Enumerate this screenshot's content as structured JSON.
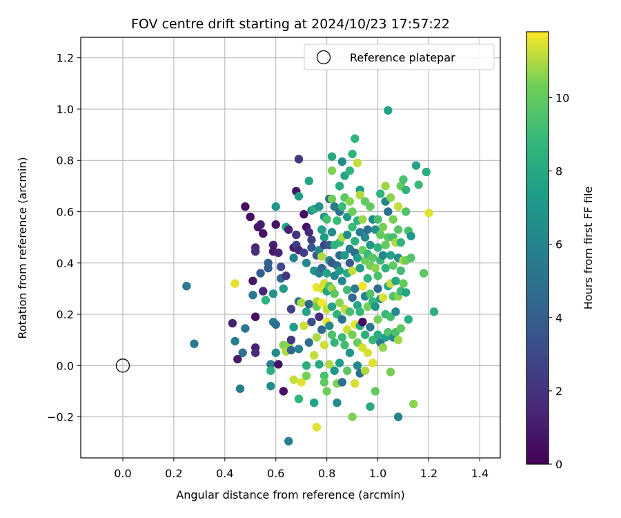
{
  "chart_data": {
    "type": "scatter",
    "title": "FOV centre drift starting at 2024/10/23 17:57:22",
    "xlabel": "Angular distance from reference (arcmin)",
    "ylabel": "Rotation from reference (arcmin)",
    "xlim": [
      -0.165,
      1.48
    ],
    "ylim": [
      -0.36,
      1.28
    ],
    "xticks": [
      0.0,
      0.2,
      0.4,
      0.6,
      0.8,
      1.0,
      1.2,
      1.4
    ],
    "xtick_labels": [
      "0.0",
      "0.2",
      "0.4",
      "0.6",
      "0.8",
      "1.0",
      "1.2",
      "1.4"
    ],
    "yticks": [
      -0.2,
      0.0,
      0.2,
      0.4,
      0.6,
      0.8,
      1.0,
      1.2
    ],
    "ytick_labels": [
      "−0.2",
      "0.0",
      "0.2",
      "0.4",
      "0.6",
      "0.8",
      "1.0",
      "1.2"
    ],
    "grid": true,
    "legend": {
      "placement": "top-right",
      "entries": [
        "Reference platepar"
      ]
    },
    "reference_point": {
      "x": 0.0,
      "y": 0.0,
      "label": "Reference platepar"
    },
    "colorbar": {
      "label": "Hours from first FF file",
      "min": 0,
      "max": 11.8,
      "ticks": [
        0,
        2,
        4,
        6,
        8,
        10
      ],
      "tick_labels": [
        "0",
        "2",
        "4",
        "6",
        "8",
        "10"
      ],
      "colormap": "viridis"
    },
    "points": [
      [
        0.25,
        0.31,
        5.3
      ],
      [
        0.28,
        0.085,
        5.5
      ],
      [
        0.44,
        0.32,
        11.5
      ],
      [
        0.46,
        -0.09,
        5.5
      ],
      [
        0.43,
        0.165,
        1.2
      ],
      [
        0.44,
        0.095,
        5.8
      ],
      [
        0.45,
        0.025,
        1.0
      ],
      [
        0.47,
        0.05,
        5.0
      ],
      [
        0.48,
        0.62,
        0.4
      ],
      [
        0.48,
        0.145,
        5.2
      ],
      [
        0.5,
        0.58,
        0.5
      ],
      [
        0.51,
        0.33,
        0.8
      ],
      [
        0.51,
        0.275,
        5.2
      ],
      [
        0.52,
        0.46,
        1.5
      ],
      [
        0.52,
        0.445,
        1.8
      ],
      [
        0.53,
        0.54,
        0.7
      ],
      [
        0.52,
        0.19,
        0.6
      ],
      [
        0.52,
        0.07,
        1.2
      ],
      [
        0.52,
        0.05,
        1.6
      ],
      [
        0.54,
        0.55,
        1.0
      ],
      [
        0.54,
        0.36,
        4.0
      ],
      [
        0.55,
        0.515,
        0.6
      ],
      [
        0.55,
        0.29,
        1.4
      ],
      [
        0.56,
        0.255,
        8.6
      ],
      [
        0.57,
        0.4,
        4.2
      ],
      [
        0.57,
        0.38,
        4.0
      ],
      [
        0.58,
        0.005,
        5.5
      ],
      [
        0.58,
        -0.02,
        8.4
      ],
      [
        0.58,
        -0.08,
        6.5
      ],
      [
        0.59,
        0.47,
        1.2
      ],
      [
        0.59,
        0.445,
        0.8
      ],
      [
        0.59,
        0.28,
        6.8
      ],
      [
        0.59,
        0.17,
        5.6
      ],
      [
        0.6,
        0.62,
        7.0
      ],
      [
        0.6,
        0.55,
        0.7
      ],
      [
        0.6,
        0.05,
        6.5
      ],
      [
        0.6,
        0.16,
        4.8
      ],
      [
        0.61,
        0.44,
        1.4
      ],
      [
        0.61,
        0.005,
        0.6
      ],
      [
        0.62,
        0.385,
        3.0
      ],
      [
        0.62,
        0.34,
        4.5
      ],
      [
        0.63,
        -0.1,
        0.6
      ],
      [
        0.63,
        0.08,
        10.5
      ],
      [
        0.63,
        0.3,
        7.2
      ],
      [
        0.64,
        0.54,
        7.6
      ],
      [
        0.64,
        0.35,
        2.2
      ],
      [
        0.64,
        0.055,
        11.0
      ],
      [
        0.65,
        0.53,
        1.2
      ],
      [
        0.65,
        -0.295,
        5.8
      ],
      [
        0.65,
        0.08,
        10.6
      ],
      [
        0.66,
        0.22,
        2.6
      ],
      [
        0.66,
        0.1,
        2.2
      ],
      [
        0.66,
        0.06,
        4.3
      ],
      [
        0.67,
        0.46,
        0.9
      ],
      [
        0.67,
        0.42,
        6.0
      ],
      [
        0.67,
        0.15,
        7.2
      ],
      [
        0.67,
        -0.055,
        11.2
      ],
      [
        0.68,
        0.68,
        0.8
      ],
      [
        0.68,
        0.51,
        2.0
      ],
      [
        0.68,
        0.47,
        2.5
      ],
      [
        0.69,
        0.805,
        2.2
      ],
      [
        0.69,
        0.66,
        7.3
      ],
      [
        0.69,
        0.45,
        1.4
      ],
      [
        0.69,
        0.25,
        4.8
      ],
      [
        0.69,
        0.065,
        6.0
      ],
      [
        0.69,
        -0.13,
        8.8
      ],
      [
        0.7,
        -0.065,
        11.5
      ],
      [
        0.7,
        0.245,
        11.0
      ],
      [
        0.71,
        0.44,
        2.5
      ],
      [
        0.71,
        0.59,
        0.5
      ],
      [
        0.71,
        0.155,
        11.3
      ],
      [
        0.72,
        0.54,
        0.6
      ],
      [
        0.72,
        0.4,
        6.2
      ],
      [
        0.72,
        0.21,
        7.6
      ],
      [
        0.72,
        0.0,
        8.3
      ],
      [
        0.72,
        -0.04,
        10.4
      ],
      [
        0.73,
        0.72,
        7.8
      ],
      [
        0.73,
        0.52,
        1.6
      ],
      [
        0.73,
        0.24,
        4.3
      ],
      [
        0.73,
        0.09,
        4.8
      ],
      [
        0.74,
        0.49,
        2.6
      ],
      [
        0.74,
        0.605,
        6.6
      ],
      [
        0.74,
        0.46,
        3.6
      ],
      [
        0.74,
        0.17,
        3.3
      ],
      [
        0.75,
        0.37,
        7.0
      ],
      [
        0.75,
        0.61,
        8.2
      ],
      [
        0.75,
        0.04,
        11.2
      ],
      [
        0.75,
        -0.145,
        7.6
      ],
      [
        0.76,
        0.43,
        3.8
      ],
      [
        0.76,
        0.305,
        11.6
      ],
      [
        0.76,
        0.25,
        11.0
      ],
      [
        0.76,
        0.23,
        10.2
      ],
      [
        0.76,
        0.11,
        11.0
      ],
      [
        0.76,
        -0.24,
        11.5
      ],
      [
        0.77,
        0.62,
        6.8
      ],
      [
        0.77,
        0.45,
        6.4
      ],
      [
        0.77,
        0.36,
        5.6
      ],
      [
        0.77,
        0.19,
        1.8
      ],
      [
        0.77,
        0.005,
        8.0
      ],
      [
        0.78,
        0.53,
        7.5
      ],
      [
        0.78,
        0.425,
        11.0
      ],
      [
        0.78,
        0.38,
        4.5
      ],
      [
        0.78,
        0.3,
        11.5
      ],
      [
        0.78,
        0.245,
        11.7
      ],
      [
        0.78,
        0.14,
        4.6
      ],
      [
        0.79,
        0.58,
        7.2
      ],
      [
        0.79,
        0.5,
        7.3
      ],
      [
        0.79,
        0.47,
        2.8
      ],
      [
        0.79,
        0.32,
        11.4
      ],
      [
        0.79,
        0.08,
        11.3
      ],
      [
        0.79,
        -0.04,
        9.4
      ],
      [
        0.79,
        -0.065,
        10.0
      ],
      [
        0.8,
        0.57,
        9.3
      ],
      [
        0.8,
        0.36,
        7.8
      ],
      [
        0.8,
        0.29,
        7.5
      ],
      [
        0.8,
        0.22,
        11.2
      ],
      [
        0.8,
        0.17,
        11.6
      ],
      [
        0.8,
        -0.1,
        10.3
      ],
      [
        0.81,
        0.65,
        4.2
      ],
      [
        0.81,
        0.47,
        3.7
      ],
      [
        0.81,
        0.41,
        6.3
      ],
      [
        0.81,
        0.31,
        9.5
      ],
      [
        0.81,
        0.155,
        6.2
      ],
      [
        0.81,
        0.005,
        11.0
      ],
      [
        0.82,
        0.815,
        8.0
      ],
      [
        0.82,
        0.76,
        10.5
      ],
      [
        0.82,
        0.65,
        10.3
      ],
      [
        0.82,
        0.52,
        6.5
      ],
      [
        0.82,
        0.4,
        3.6
      ],
      [
        0.82,
        0.3,
        10.8
      ],
      [
        0.82,
        0.23,
        7.6
      ],
      [
        0.82,
        0.12,
        9.5
      ],
      [
        0.83,
        0.62,
        5.4
      ],
      [
        0.83,
        0.47,
        8.6
      ],
      [
        0.83,
        0.35,
        6.4
      ],
      [
        0.83,
        0.28,
        9.9
      ],
      [
        0.83,
        0.09,
        8.8
      ],
      [
        0.83,
        -0.02,
        7.0
      ],
      [
        0.84,
        0.565,
        9.0
      ],
      [
        0.84,
        0.39,
        4.6
      ],
      [
        0.84,
        0.2,
        8.5
      ],
      [
        0.84,
        -0.07,
        10.5
      ],
      [
        0.84,
        -0.145,
        6.4
      ],
      [
        0.85,
        0.7,
        8.2
      ],
      [
        0.85,
        0.6,
        5.0
      ],
      [
        0.85,
        0.48,
        8.8
      ],
      [
        0.85,
        0.43,
        4.7
      ],
      [
        0.85,
        0.37,
        7.2
      ],
      [
        0.85,
        0.245,
        10.6
      ],
      [
        0.85,
        0.01,
        7.4
      ],
      [
        0.86,
        0.795,
        6.4
      ],
      [
        0.86,
        0.62,
        9.0
      ],
      [
        0.86,
        0.5,
        11.0
      ],
      [
        0.86,
        0.33,
        6.2
      ],
      [
        0.86,
        0.18,
        5.0
      ],
      [
        0.86,
        0.11,
        9.0
      ],
      [
        0.86,
        -0.065,
        4.8
      ],
      [
        0.87,
        0.74,
        7.8
      ],
      [
        0.87,
        0.655,
        9.8
      ],
      [
        0.87,
        0.43,
        7.0
      ],
      [
        0.87,
        0.22,
        11.2
      ],
      [
        0.87,
        0.08,
        9.2
      ],
      [
        0.88,
        0.58,
        7.0
      ],
      [
        0.88,
        0.51,
        6.6
      ],
      [
        0.88,
        0.36,
        8.0
      ],
      [
        0.88,
        0.295,
        9.2
      ],
      [
        0.88,
        0.14,
        11.3
      ],
      [
        0.88,
        -0.02,
        9.8
      ],
      [
        0.89,
        0.76,
        8.6
      ],
      [
        0.89,
        0.64,
        10.6
      ],
      [
        0.89,
        0.455,
        5.8
      ],
      [
        0.89,
        0.4,
        3.8
      ],
      [
        0.89,
        0.21,
        9.4
      ],
      [
        0.89,
        0.05,
        6.8
      ],
      [
        0.9,
        0.825,
        8.6
      ],
      [
        0.9,
        0.6,
        10.2
      ],
      [
        0.9,
        0.54,
        9.0
      ],
      [
        0.9,
        0.37,
        11.2
      ],
      [
        0.9,
        0.265,
        4.6
      ],
      [
        0.9,
        0.12,
        10.4
      ],
      [
        0.9,
        -0.2,
        10.5
      ],
      [
        0.91,
        0.885,
        8.6
      ],
      [
        0.91,
        0.485,
        8.4
      ],
      [
        0.91,
        0.44,
        4.6
      ],
      [
        0.91,
        0.3,
        5.4
      ],
      [
        0.91,
        0.16,
        11.6
      ],
      [
        0.91,
        -0.07,
        11.4
      ],
      [
        0.92,
        0.79,
        11.2
      ],
      [
        0.92,
        0.565,
        8.4
      ],
      [
        0.92,
        0.42,
        7.4
      ],
      [
        0.92,
        0.235,
        7.8
      ],
      [
        0.92,
        0.09,
        10.2
      ],
      [
        0.92,
        0.0,
        6.4
      ],
      [
        0.93,
        0.685,
        7.4
      ],
      [
        0.93,
        0.665,
        11.0
      ],
      [
        0.93,
        0.52,
        5.6
      ],
      [
        0.93,
        0.38,
        7.4
      ],
      [
        0.93,
        0.21,
        8.8
      ],
      [
        0.93,
        0.155,
        8.0
      ],
      [
        0.93,
        -0.03,
        4.8
      ],
      [
        0.94,
        0.57,
        10.8
      ],
      [
        0.94,
        0.45,
        10.2
      ],
      [
        0.94,
        0.31,
        11.7
      ],
      [
        0.94,
        0.17,
        0.4
      ],
      [
        0.94,
        0.07,
        11.4
      ],
      [
        0.95,
        0.64,
        10.0
      ],
      [
        0.95,
        0.5,
        6.2
      ],
      [
        0.95,
        0.41,
        10.3
      ],
      [
        0.95,
        0.27,
        6.0
      ],
      [
        0.95,
        0.12,
        8.4
      ],
      [
        0.95,
        -0.02,
        11.0
      ],
      [
        0.96,
        0.53,
        5.0
      ],
      [
        0.96,
        0.435,
        9.0
      ],
      [
        0.96,
        0.34,
        8.6
      ],
      [
        0.96,
        0.23,
        10.4
      ],
      [
        0.96,
        0.05,
        11.4
      ],
      [
        0.97,
        0.62,
        10.0
      ],
      [
        0.97,
        0.47,
        7.0
      ],
      [
        0.97,
        0.39,
        10.3
      ],
      [
        0.97,
        0.28,
        9.6
      ],
      [
        0.97,
        0.15,
        5.4
      ],
      [
        0.97,
        -0.16,
        8.0
      ],
      [
        0.98,
        0.57,
        6.2
      ],
      [
        0.98,
        0.42,
        9.8
      ],
      [
        0.98,
        0.25,
        8.6
      ],
      [
        0.98,
        0.1,
        9.0
      ],
      [
        0.98,
        0.01,
        11.5
      ],
      [
        0.99,
        0.53,
        6.8
      ],
      [
        0.99,
        0.38,
        10.6
      ],
      [
        0.99,
        0.23,
        7.0
      ],
      [
        0.99,
        -0.1,
        10.0
      ],
      [
        1.0,
        0.57,
        9.4
      ],
      [
        1.0,
        0.46,
        8.6
      ],
      [
        1.0,
        0.35,
        9.4
      ],
      [
        1.0,
        0.3,
        4.5
      ],
      [
        1.0,
        0.18,
        10.4
      ],
      [
        1.0,
        0.12,
        8.2
      ],
      [
        1.01,
        0.67,
        8.6
      ],
      [
        1.01,
        0.51,
        10.0
      ],
      [
        1.01,
        0.41,
        9.0
      ],
      [
        1.01,
        0.26,
        6.8
      ],
      [
        1.01,
        0.09,
        5.6
      ],
      [
        1.02,
        0.54,
        10.4
      ],
      [
        1.02,
        0.43,
        6.2
      ],
      [
        1.02,
        0.265,
        11.4
      ],
      [
        1.02,
        0.07,
        10.7
      ],
      [
        1.03,
        0.7,
        10.8
      ],
      [
        1.03,
        0.64,
        6.0
      ],
      [
        1.03,
        0.47,
        10.0
      ],
      [
        1.03,
        0.38,
        8.6
      ],
      [
        1.03,
        0.2,
        8.9
      ],
      [
        1.03,
        0.11,
        7.4
      ],
      [
        1.04,
        0.995,
        7.6
      ],
      [
        1.04,
        0.6,
        5.0
      ],
      [
        1.04,
        0.5,
        9.8
      ],
      [
        1.04,
        0.31,
        8.0
      ],
      [
        1.04,
        0.13,
        9.6
      ],
      [
        1.05,
        0.655,
        10.6
      ],
      [
        1.05,
        0.43,
        7.6
      ],
      [
        1.05,
        0.32,
        11.2
      ],
      [
        1.05,
        0.19,
        9.2
      ],
      [
        1.05,
        -0.025,
        10.4
      ],
      [
        1.06,
        0.57,
        10.4
      ],
      [
        1.06,
        0.5,
        9.2
      ],
      [
        1.06,
        0.39,
        10.0
      ],
      [
        1.06,
        0.27,
        9.6
      ],
      [
        1.06,
        0.11,
        6.6
      ],
      [
        1.07,
        0.48,
        11.0
      ],
      [
        1.07,
        0.33,
        7.8
      ],
      [
        1.07,
        0.21,
        6.2
      ],
      [
        1.07,
        0.13,
        9.4
      ],
      [
        1.08,
        0.62,
        11.2
      ],
      [
        1.08,
        0.53,
        9.8
      ],
      [
        1.08,
        0.42,
        6.6
      ],
      [
        1.08,
        0.27,
        10.6
      ],
      [
        1.08,
        0.1,
        10.8
      ],
      [
        1.08,
        -0.2,
        6.0
      ],
      [
        1.09,
        0.7,
        10.2
      ],
      [
        1.09,
        0.48,
        8.6
      ],
      [
        1.09,
        0.37,
        9.2
      ],
      [
        1.09,
        0.29,
        9.0
      ],
      [
        1.09,
        0.145,
        10.0
      ],
      [
        1.1,
        0.725,
        9.4
      ],
      [
        1.1,
        0.41,
        11.0
      ],
      [
        1.1,
        0.32,
        10.0
      ],
      [
        1.11,
        0.685,
        8.7
      ],
      [
        1.11,
        0.6,
        9.6
      ],
      [
        1.11,
        0.41,
        10.2
      ],
      [
        1.11,
        0.285,
        7.8
      ],
      [
        1.12,
        0.525,
        9.4
      ],
      [
        1.12,
        0.18,
        8.4
      ],
      [
        1.13,
        0.505,
        7.0
      ],
      [
        1.13,
        0.42,
        9.6
      ],
      [
        1.14,
        -0.15,
        10.6
      ],
      [
        1.15,
        0.78,
        7.6
      ],
      [
        1.16,
        0.705,
        9.0
      ],
      [
        1.18,
        0.36,
        9.8
      ],
      [
        1.19,
        0.755,
        8.2
      ],
      [
        1.2,
        0.595,
        11.5
      ],
      [
        1.22,
        0.21,
        8.4
      ]
    ]
  }
}
